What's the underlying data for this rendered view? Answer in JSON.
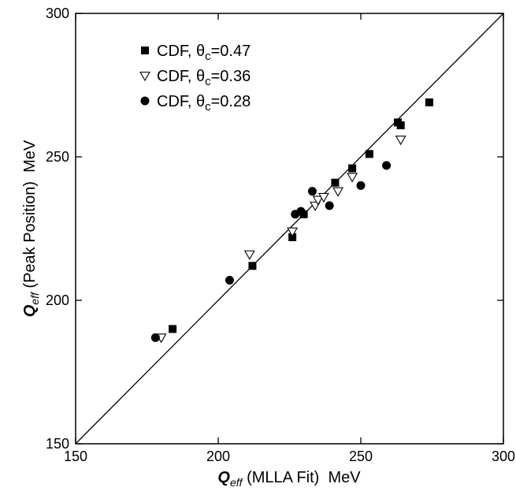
{
  "chart_data": {
    "type": "scatter",
    "xlabel": {
      "main": "Q",
      "sub": "eff",
      "rest": " (MLLA Fit)  MeV"
    },
    "ylabel": {
      "main": "Q",
      "sub": "eff",
      "rest": " (Peak Position)  MeV"
    },
    "xlim": [
      150,
      300
    ],
    "ylim": [
      150,
      300
    ],
    "xticks": [
      150,
      200,
      250,
      300
    ],
    "yticks": [
      150,
      200,
      250,
      300
    ],
    "diagonal": true,
    "legend_position": "top-left",
    "series": [
      {
        "name": {
          "prefix": "CDF, ",
          "symbol": "θ",
          "sub": "c",
          "value": "=0.47"
        },
        "marker": "square",
        "points": [
          [
            184,
            190
          ],
          [
            212,
            212
          ],
          [
            226,
            222
          ],
          [
            230,
            230
          ],
          [
            241,
            241
          ],
          [
            247,
            246
          ],
          [
            253,
            251
          ],
          [
            263,
            262
          ],
          [
            264,
            261
          ],
          [
            274,
            269
          ]
        ]
      },
      {
        "name": {
          "prefix": "CDF, ",
          "symbol": "θ",
          "sub": "c",
          "value": "=0.36"
        },
        "marker": "triangle-down",
        "points": [
          [
            180,
            187
          ],
          [
            211,
            216
          ],
          [
            226,
            224
          ],
          [
            234,
            233
          ],
          [
            235,
            235
          ],
          [
            237,
            236
          ],
          [
            242,
            238
          ],
          [
            247,
            243
          ],
          [
            264,
            256
          ]
        ]
      },
      {
        "name": {
          "prefix": "CDF, ",
          "symbol": "θ",
          "sub": "c",
          "value": "=0.28"
        },
        "marker": "circle",
        "points": [
          [
            178,
            187
          ],
          [
            204,
            207
          ],
          [
            227,
            230
          ],
          [
            229,
            231
          ],
          [
            233,
            238
          ],
          [
            239,
            233
          ],
          [
            250,
            240
          ],
          [
            259,
            247
          ]
        ]
      }
    ]
  }
}
